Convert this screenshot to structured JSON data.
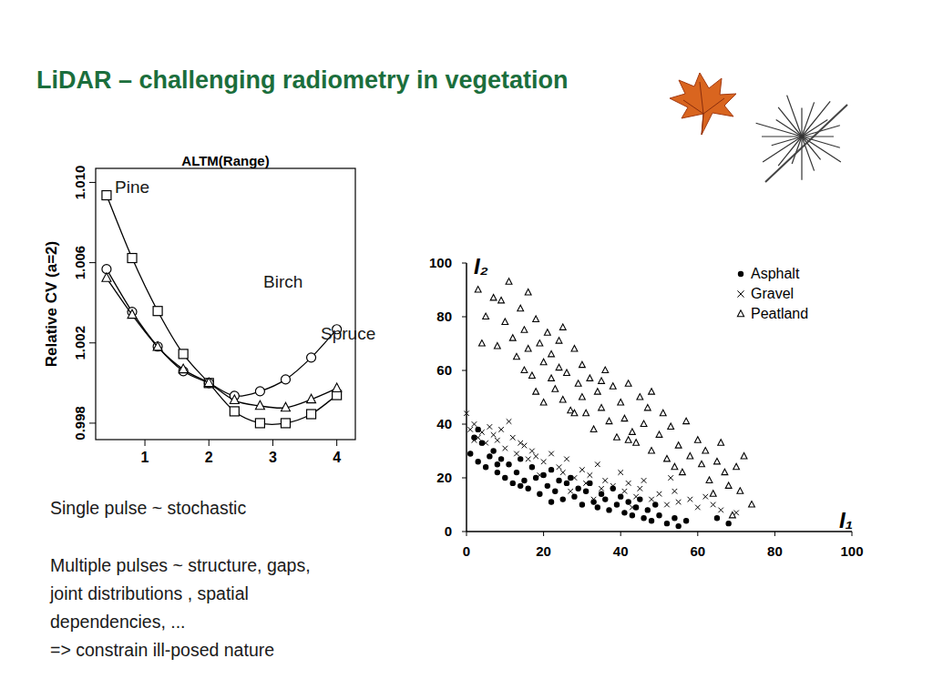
{
  "slide": {
    "title": "LiDAR – challenging radiometry in vegetation",
    "text": [
      "Single pulse ~ stochastic",
      "Multiple pulses ~ structure, gaps,",
      "joint distributions , spatial",
      "dependencies, ...",
      "=> constrain ill-posed nature"
    ]
  },
  "chart_data": [
    {
      "type": "line",
      "title": "ALTM(Range)",
      "y_label": "Relative CV (a=2)",
      "x": [
        0.4,
        0.8,
        1.2,
        1.6,
        2.0,
        2.4,
        2.8,
        3.2,
        3.6,
        4.0
      ],
      "xlim": [
        0.23,
        4.29
      ],
      "xticks": [
        1,
        2,
        3,
        4
      ],
      "ylim": [
        0.99718,
        1.0107
      ],
      "yticks": [
        0.998,
        1.002,
        1.006,
        {
          "value": 1.01,
          "label": "1.010"
        }
      ],
      "series": [
        {
          "name": "Pine",
          "marker": "square",
          "color": "#000000",
          "values": [
            1.00936,
            1.00623,
            1.00359,
            1.00145,
            1.0,
            0.99859,
            0.998,
            0.998,
            0.99845,
            0.9994
          ]
        },
        {
          "name": "Birch",
          "marker": "circle",
          "color": "#000000",
          "values": [
            1.00568,
            1.00355,
            1.00182,
            1.00059,
            1.0,
            0.99936,
            0.99959,
            1.00018,
            1.00127,
            1.00268
          ]
        },
        {
          "name": "Spruce",
          "marker": "triangle",
          "color": "#000000",
          "values": [
            1.00523,
            1.0034,
            1.0018,
            1.00068,
            1.0,
            0.99914,
            0.99886,
            0.99877,
            0.99918,
            0.99973
          ]
        }
      ]
    },
    {
      "type": "scatter",
      "x_label": "I₁",
      "y_label": "I₂",
      "xlim": [
        0,
        100
      ],
      "ylim": [
        0,
        100
      ],
      "xticks": [
        0,
        20,
        40,
        60,
        80,
        100
      ],
      "yticks": [
        0,
        20,
        40,
        60,
        80,
        100
      ],
      "legend": "top-right",
      "series": [
        {
          "name": "Asphalt",
          "marker": "circle",
          "color": "#000000",
          "x": [
            1,
            2,
            3,
            4,
            5,
            6,
            7,
            8,
            9,
            10,
            11,
            12,
            13,
            14,
            15,
            16,
            17,
            18,
            19,
            20,
            21,
            22,
            23,
            24,
            25,
            26,
            27,
            28,
            29,
            30,
            31,
            32,
            33,
            34,
            35,
            36,
            37,
            38,
            39,
            40,
            41,
            42,
            43,
            44,
            45,
            46,
            47,
            48,
            49,
            50,
            52,
            54,
            55,
            57,
            65,
            68,
            3,
            8,
            14,
            22
          ],
          "values": [
            29,
            35,
            26,
            33,
            24,
            28,
            30,
            22,
            27,
            20,
            25,
            18,
            22,
            27,
            19,
            16,
            24,
            20,
            14,
            21,
            17,
            23,
            15,
            19,
            12,
            18,
            20,
            13,
            16,
            10,
            15,
            18,
            11,
            9,
            14,
            12,
            8,
            16,
            10,
            13,
            7,
            11,
            6,
            9,
            12,
            5,
            8,
            4,
            10,
            6,
            3,
            5,
            2,
            4,
            5,
            3,
            38,
            25,
            17,
            11
          ]
        },
        {
          "name": "Gravel",
          "marker": "x",
          "color": "#000000",
          "x": [
            0,
            1,
            2,
            3,
            4,
            5,
            6,
            7,
            8,
            9,
            10,
            12,
            13,
            14,
            15,
            16,
            17,
            18,
            20,
            22,
            24,
            25,
            26,
            28,
            30,
            31,
            32,
            34,
            35,
            36,
            38,
            40,
            41,
            42,
            44,
            45,
            46,
            48,
            50,
            52,
            54,
            55,
            58,
            60,
            62,
            64,
            66,
            70,
            2,
            11,
            19,
            27,
            33,
            43,
            53
          ],
          "values": [
            44,
            38,
            40,
            35,
            37,
            33,
            39,
            36,
            34,
            38,
            31,
            35,
            29,
            33,
            32,
            27,
            30,
            28,
            26,
            29,
            24,
            22,
            27,
            20,
            23,
            18,
            21,
            25,
            16,
            19,
            17,
            22,
            15,
            18,
            13,
            16,
            19,
            12,
            14,
            10,
            15,
            11,
            12,
            9,
            13,
            10,
            8,
            7,
            34,
            41,
            21,
            15,
            12,
            9,
            20
          ]
        },
        {
          "name": "Peatland",
          "marker": "triangle",
          "color": "#000000",
          "x": [
            3,
            5,
            7,
            8,
            10,
            11,
            12,
            13,
            14,
            15,
            15,
            16,
            17,
            18,
            18,
            19,
            20,
            20,
            21,
            22,
            22,
            23,
            24,
            25,
            25,
            26,
            27,
            28,
            29,
            30,
            30,
            31,
            32,
            33,
            34,
            35,
            36,
            37,
            38,
            39,
            40,
            41,
            42,
            43,
            44,
            45,
            46,
            47,
            48,
            50,
            51,
            52,
            53,
            55,
            56,
            57,
            58,
            60,
            61,
            62,
            63,
            65,
            66,
            67,
            68,
            70,
            71,
            72,
            74,
            4,
            9,
            16,
            24,
            28,
            35,
            42,
            48,
            54,
            64,
            69
          ],
          "values": [
            90,
            80,
            87,
            69,
            78,
            93,
            72,
            65,
            83,
            60,
            75,
            68,
            58,
            79,
            52,
            70,
            63,
            48,
            74,
            57,
            66,
            53,
            61,
            76,
            49,
            59,
            45,
            68,
            55,
            50,
            62,
            44,
            57,
            38,
            52,
            46,
            60,
            41,
            54,
            35,
            48,
            42,
            55,
            37,
            33,
            50,
            40,
            46,
            30,
            36,
            44,
            27,
            39,
            32,
            22,
            41,
            28,
            34,
            25,
            30,
            19,
            26,
            33,
            22,
            17,
            24,
            15,
            28,
            10,
            70,
            86,
            89,
            71,
            44,
            56,
            34,
            52,
            24,
            14,
            6
          ]
        }
      ]
    }
  ]
}
